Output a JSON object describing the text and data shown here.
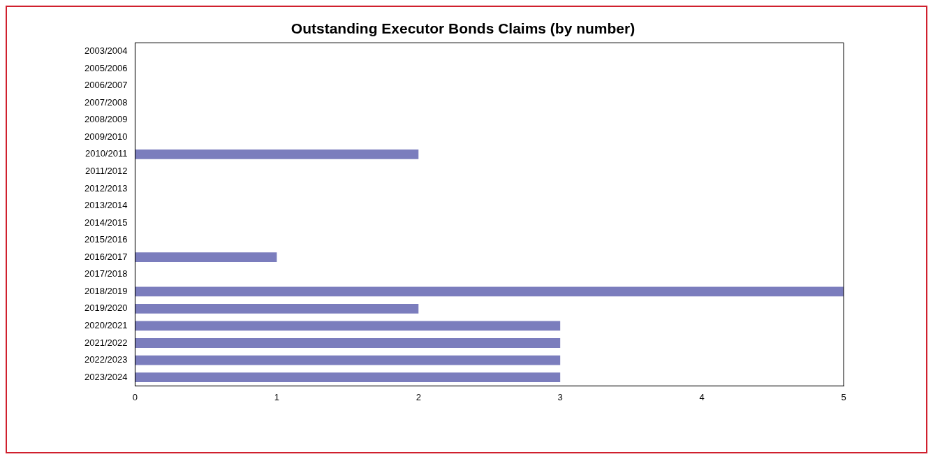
{
  "chart_data": {
    "type": "bar",
    "orientation": "horizontal",
    "title": "Outstanding Executor Bonds Claims (by number)",
    "categories": [
      "2003/2004",
      "2005/2006",
      "2006/2007",
      "2007/2008",
      "2008/2009",
      "2009/2010",
      "2010/2011",
      "2011/2012",
      "2012/2013",
      "2013/2014",
      "2014/2015",
      "2015/2016",
      "2016/2017",
      "2017/2018",
      "2018/2019",
      "2019/2020",
      "2020/2021",
      "2021/2022",
      "2022/2023",
      "2023/2024"
    ],
    "values": [
      0,
      0,
      0,
      0,
      0,
      0,
      2,
      0,
      0,
      0,
      0,
      0,
      1,
      0,
      5,
      2,
      3,
      3,
      3,
      3
    ],
    "color": "#7b7dbd",
    "xlim": [
      0,
      5
    ],
    "xticks": [
      0,
      1,
      2,
      3,
      4,
      5
    ],
    "grid": false,
    "legend": false
  }
}
